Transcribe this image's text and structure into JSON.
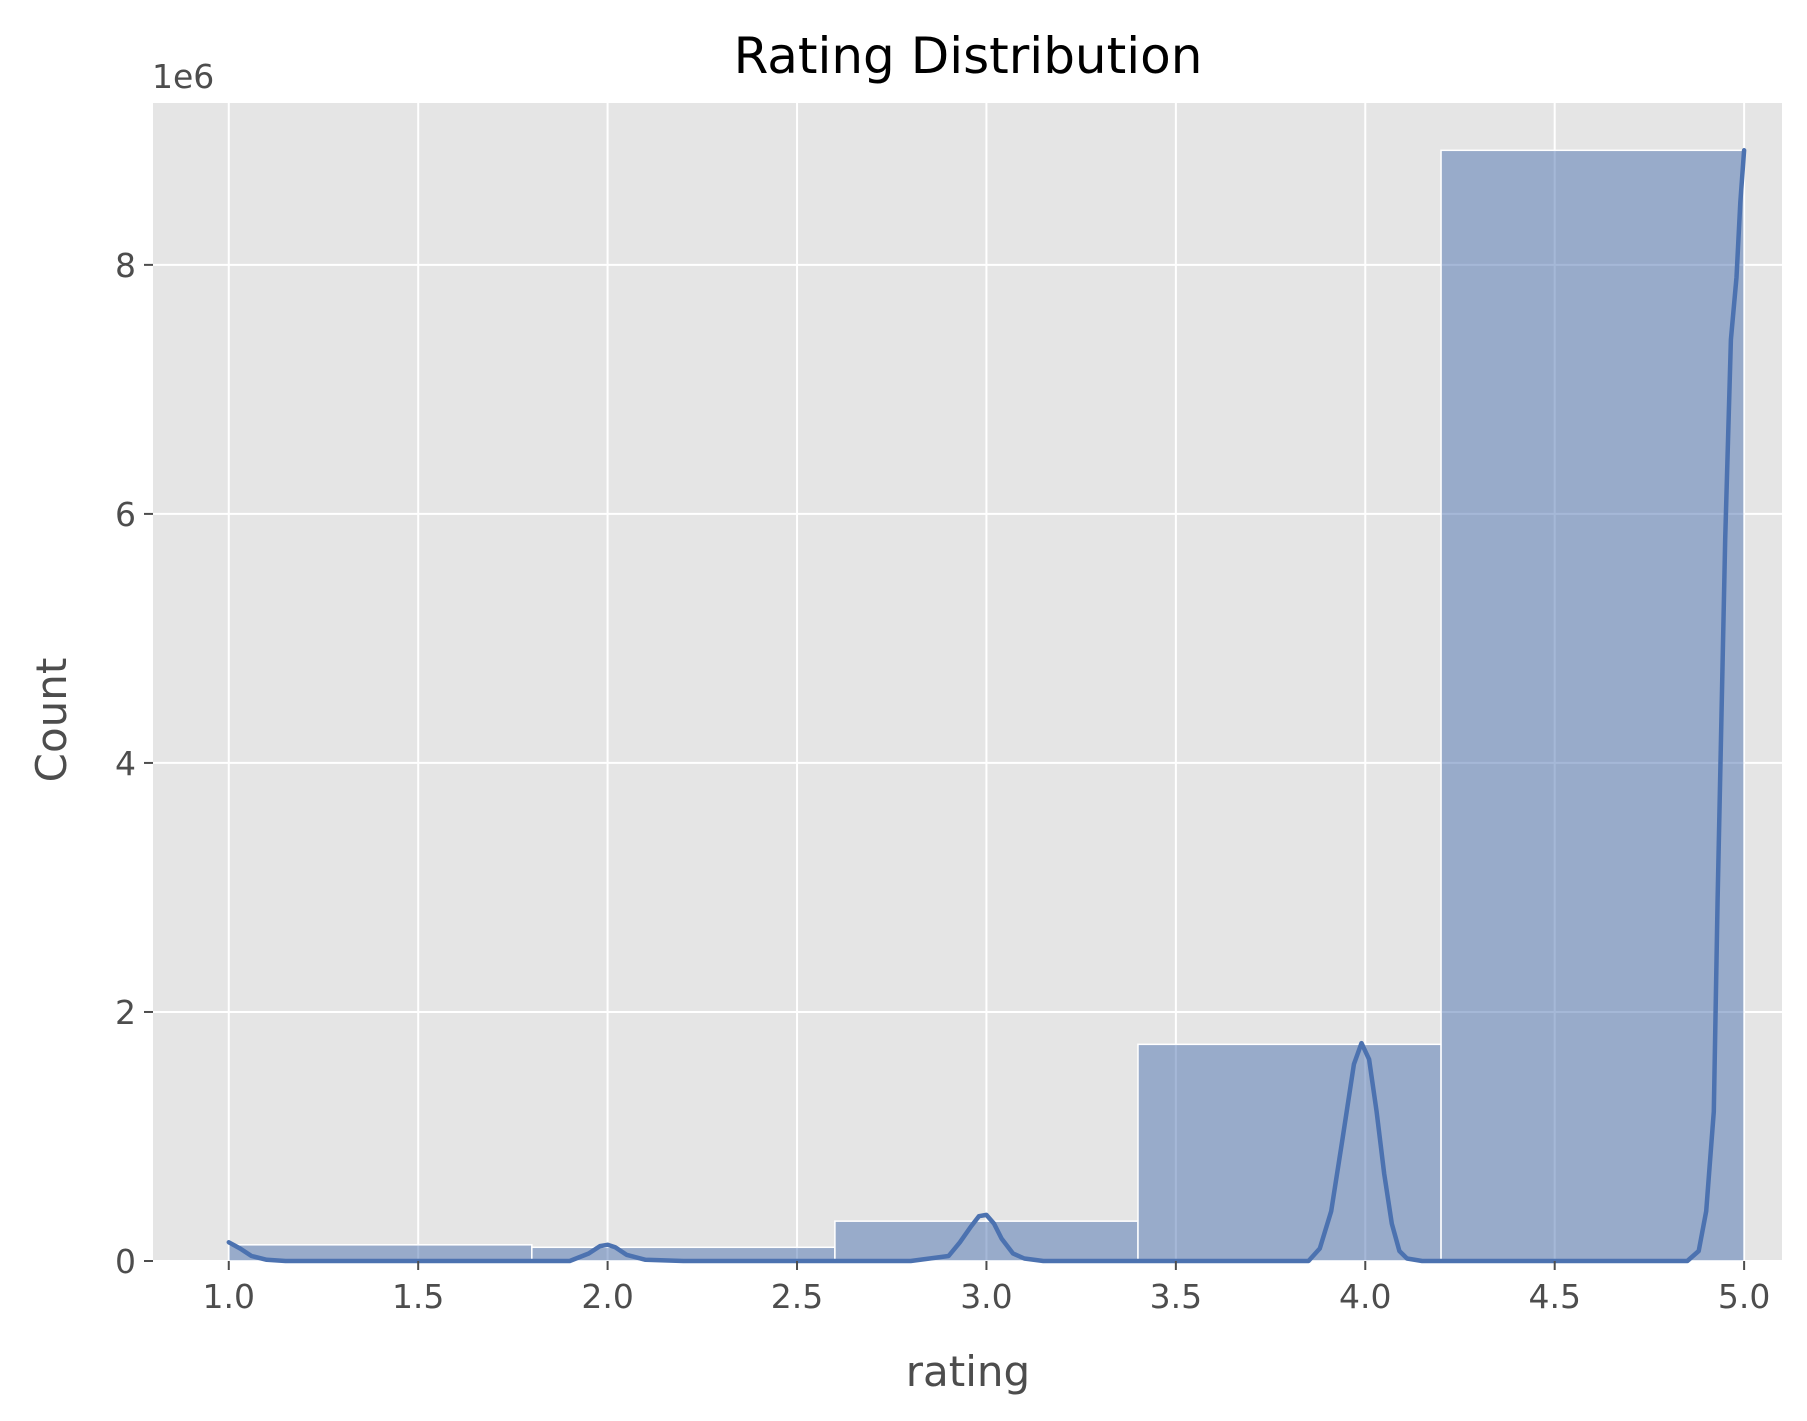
{
  "chart_data": {
    "type": "bar",
    "title": "Rating Distribution",
    "xlabel": "rating",
    "ylabel": "Count",
    "y_offset_label": "1e6",
    "xlim": [
      0.8,
      5.1
    ],
    "ylim": [
      0,
      9.3
    ],
    "x_ticks": [
      {
        "value": 1.0,
        "label": "1.0"
      },
      {
        "value": 1.5,
        "label": "1.5"
      },
      {
        "value": 2.0,
        "label": "2.0"
      },
      {
        "value": 2.5,
        "label": "2.5"
      },
      {
        "value": 3.0,
        "label": "3.0"
      },
      {
        "value": 3.5,
        "label": "3.5"
      },
      {
        "value": 4.0,
        "label": "4.0"
      },
      {
        "value": 4.5,
        "label": "4.5"
      },
      {
        "value": 5.0,
        "label": "5.0"
      }
    ],
    "y_ticks": [
      {
        "value": 0,
        "label": "0"
      },
      {
        "value": 2,
        "label": "2"
      },
      {
        "value": 4,
        "label": "4"
      },
      {
        "value": 6,
        "label": "6"
      },
      {
        "value": 8,
        "label": "8"
      }
    ],
    "histogram_bins": [
      {
        "x0": 1.0,
        "x1": 1.8,
        "count": 0.13
      },
      {
        "x0": 1.8,
        "x1": 2.6,
        "count": 0.11
      },
      {
        "x0": 2.6,
        "x1": 3.4,
        "count": 0.32
      },
      {
        "x0": 3.4,
        "x1": 4.2,
        "count": 1.74
      },
      {
        "x0": 4.2,
        "x1": 5.0,
        "count": 8.92
      }
    ],
    "kde_series": {
      "x": [
        1.0,
        1.03,
        1.06,
        1.1,
        1.15,
        1.3,
        1.6,
        1.9,
        1.95,
        1.98,
        2.0,
        2.02,
        2.05,
        2.1,
        2.2,
        2.5,
        2.8,
        2.9,
        2.93,
        2.96,
        2.98,
        3.0,
        3.02,
        3.04,
        3.07,
        3.1,
        3.15,
        3.3,
        3.6,
        3.85,
        3.88,
        3.91,
        3.94,
        3.97,
        3.99,
        4.01,
        4.03,
        4.05,
        4.07,
        4.09,
        4.11,
        4.15,
        4.3,
        4.6,
        4.85,
        4.88,
        4.9,
        4.92,
        4.93,
        4.95,
        4.965,
        4.98,
        4.99,
        5.0
      ],
      "y": [
        0.15,
        0.1,
        0.04,
        0.01,
        0.0,
        0.0,
        0.0,
        0.0,
        0.06,
        0.12,
        0.13,
        0.11,
        0.05,
        0.01,
        0.0,
        0.0,
        0.0,
        0.04,
        0.15,
        0.28,
        0.36,
        0.37,
        0.3,
        0.18,
        0.06,
        0.02,
        0.0,
        0.0,
        0.0,
        0.0,
        0.1,
        0.4,
        0.98,
        1.58,
        1.75,
        1.62,
        1.2,
        0.7,
        0.3,
        0.08,
        0.02,
        0.0,
        0.0,
        0.0,
        0.0,
        0.08,
        0.4,
        1.2,
        2.9,
        5.8,
        7.4,
        7.9,
        8.5,
        8.92
      ]
    },
    "bar_color": "#4c72b0",
    "bar_opacity": 0.5,
    "line_color": "#4c72b0",
    "plot_background": "#e5e5e5",
    "grid": true,
    "grid_color": "#ffffff",
    "legend": "none"
  }
}
